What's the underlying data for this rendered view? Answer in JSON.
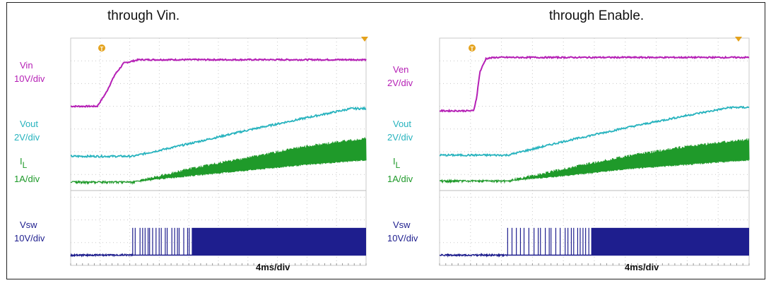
{
  "colors": {
    "magenta": "#b51fb5",
    "cyan": "#27b3be",
    "green": "#1f9a2a",
    "blue": "#1e1e8e",
    "grid": "#c8c8c8",
    "marker": "#e4a21c"
  },
  "chart_data": [
    {
      "type": "line",
      "title": "through Vin.",
      "x_unit": "div",
      "xlim": [
        0,
        10
      ],
      "x_tick_divisions": 10,
      "scale_label": "4ms/div",
      "trigger_marker": "T",
      "channels": [
        {
          "name": "Vin",
          "scale": "10V/div",
          "color": "#b51fb5",
          "x": [
            0,
            0.9,
            1.2,
            1.5,
            1.8,
            2.3,
            10
          ],
          "y": [
            7.0,
            7.0,
            7.6,
            8.4,
            8.9,
            9.05,
            9.05
          ]
        },
        {
          "name": "Vout",
          "scale": "2V/div",
          "color": "#27b3be",
          "x": [
            0,
            2.1,
            4,
            6,
            8,
            9.5,
            10
          ],
          "y": [
            4.8,
            4.8,
            5.35,
            5.95,
            6.5,
            6.9,
            6.9
          ]
        },
        {
          "name": "I",
          "subscript": "L",
          "scale": "1A/div",
          "color": "#1f9a2a",
          "x": [
            0,
            2.1,
            4,
            6,
            8,
            10
          ],
          "y_low": [
            3.65,
            3.65,
            3.9,
            4.15,
            4.4,
            4.6
          ],
          "y_high": [
            3.7,
            3.7,
            4.3,
            4.8,
            5.3,
            5.65
          ]
        },
        {
          "name": "Vsw",
          "scale": "10V/div",
          "color": "#1e1e8e",
          "base": 0.45,
          "high": 1.65,
          "start": 2.1,
          "dense_from": 4.1
        }
      ]
    },
    {
      "type": "line",
      "title": "through Enable.",
      "x_unit": "div",
      "xlim": [
        0,
        10
      ],
      "x_tick_divisions": 10,
      "scale_label": "4ms/div",
      "trigger_marker": "T",
      "channels": [
        {
          "name": "Ven",
          "scale": "2V/div",
          "color": "#b51fb5",
          "x": [
            0,
            1.1,
            1.2,
            1.3,
            1.5,
            1.8,
            10
          ],
          "y": [
            6.8,
            6.8,
            7.4,
            8.5,
            9.1,
            9.15,
            9.15
          ]
        },
        {
          "name": "Vout",
          "scale": "2V/div",
          "color": "#27b3be",
          "x": [
            0,
            2.2,
            4,
            6,
            8,
            9.4,
            10
          ],
          "y": [
            4.85,
            4.85,
            5.45,
            6.05,
            6.6,
            6.95,
            6.95
          ]
        },
        {
          "name": "I",
          "subscript": "L",
          "scale": "1A/div",
          "color": "#1f9a2a",
          "x": [
            0,
            2.2,
            4,
            6,
            8,
            10
          ],
          "y_low": [
            3.7,
            3.7,
            3.9,
            4.2,
            4.4,
            4.6
          ],
          "y_high": [
            3.75,
            3.75,
            4.3,
            4.85,
            5.3,
            5.6
          ]
        },
        {
          "name": "Vsw",
          "scale": "10V/div",
          "color": "#1e1e8e",
          "base": 0.45,
          "high": 1.65,
          "start": 2.2,
          "dense_from": 4.9
        }
      ]
    }
  ]
}
